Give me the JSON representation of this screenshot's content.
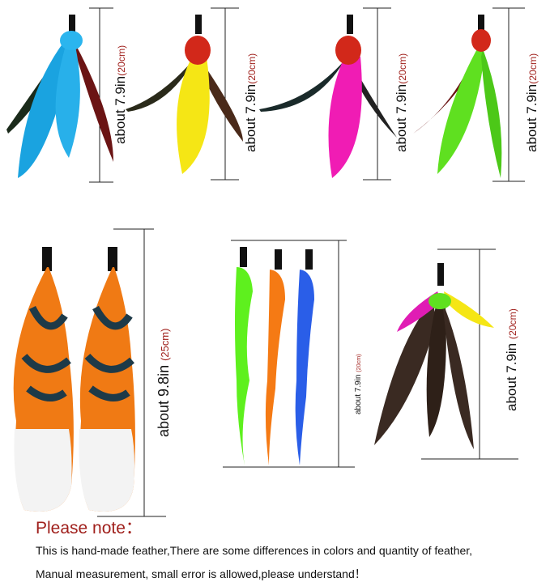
{
  "products": [
    {
      "name": "blue feather",
      "color": "#1aa3e0",
      "length_in": "about 7.9in",
      "length_cm": "(20cm)"
    },
    {
      "name": "yellow feather",
      "color": "#f5e615",
      "length_in": "about 7.9in",
      "length_cm": "(20cm)"
    },
    {
      "name": "pink feather",
      "color": "#f01cb4",
      "length_in": "about 7.9in",
      "length_cm": "(20cm)"
    },
    {
      "name": "green feather",
      "color": "#5fe020",
      "length_in": "about 7.9in",
      "length_cm": "(20cm)"
    },
    {
      "name": "fox tail pair",
      "color": "#f07a14",
      "length_in": "about 9.8in",
      "length_cm": "(25cm)"
    },
    {
      "name": "wool worms",
      "colors": [
        "#5ef01e",
        "#f57a14",
        "#2a5ee8"
      ],
      "length_in": "about 7.9in",
      "length_cm": "(20cm)"
    },
    {
      "name": "guinea feather",
      "color": "#3a2a22",
      "length_in": "about 7.9in",
      "length_cm": "(20cm)"
    }
  ],
  "note": {
    "title": "Please note：",
    "line1": "This is hand-made feather,There are some differences in colors and quantity of feather,",
    "line2": "Manual measurement, small error is allowed,please understand！"
  }
}
